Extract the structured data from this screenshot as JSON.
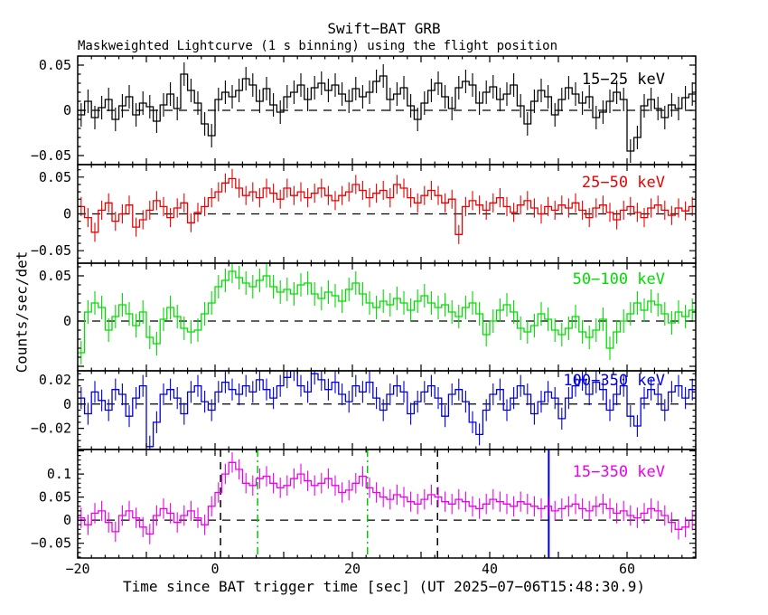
{
  "figure": {
    "title": "Swift−BAT GRB",
    "subtitle": "Maskweighted Lightcurve (1 s binning) using the flight position",
    "xlabel": "Time since BAT trigger time [sec] (UT 2025−07−06T15:48:30.9)",
    "ylabel": "Counts/sec/det",
    "trigger_time_ut": "2025-07-06T15:48:30.9",
    "binning": "1 s"
  },
  "chart_data": {
    "type": "line",
    "subtype": "step-histogram-with-errorbars",
    "x_start": -20,
    "bin_width_sec": 1,
    "xlim": [
      -20,
      70
    ],
    "x_major_tick_step": 10,
    "x_minor_tick_step": 2,
    "x_labeled_ticks": [
      -20,
      0,
      20,
      40,
      60
    ],
    "x_labeled_tick_labels": [
      "−20",
      "0",
      "20",
      "40",
      "60"
    ],
    "zero_line": {
      "style": "dashed",
      "color": "#000000"
    },
    "panels": [
      {
        "label": "15−25 keV",
        "color": "#000000",
        "ylim": [
          -0.06,
          0.06
        ],
        "yticks_labeled": [
          0.05,
          0,
          -0.05
        ],
        "y_major_step": 0.05,
        "y_minor_step": 0.01,
        "err": 0.013,
        "values": [
          -0.005,
          0.01,
          -0.008,
          0.003,
          0.012,
          -0.01,
          0.005,
          0.015,
          -0.005,
          0.008,
          0.004,
          -0.012,
          0.006,
          0.018,
          0.002,
          0.04,
          0.022,
          0.008,
          -0.015,
          -0.028,
          0.012,
          0.02,
          0.015,
          0.022,
          0.035,
          0.028,
          0.01,
          0.024,
          0.006,
          -0.002,
          0.015,
          0.02,
          0.028,
          0.012,
          0.025,
          0.03,
          0.022,
          0.028,
          0.018,
          0.01,
          0.024,
          0.015,
          0.02,
          0.032,
          0.038,
          0.012,
          0.018,
          0.025,
          0.005,
          -0.01,
          0.008,
          0.022,
          0.03,
          0.015,
          0.002,
          0.025,
          0.032,
          0.028,
          0.008,
          0.02,
          0.026,
          0.012,
          0.018,
          0.028,
          0.005,
          -0.015,
          0.01,
          0.022,
          0.015,
          -0.005,
          0.012,
          0.025,
          0.018,
          0.008,
          0.015,
          -0.008,
          -0.002,
          0.01,
          0.02,
          0.012,
          -0.045,
          -0.03,
          0.005,
          0.012,
          0.002,
          -0.008,
          0.006,
          0.002,
          0.014,
          0.018
        ]
      },
      {
        "label": "25−50 keV",
        "color": "#ee0000",
        "ylim": [
          -0.067,
          0.067
        ],
        "yticks_labeled": [
          0.05,
          0,
          -0.05
        ],
        "y_major_step": 0.05,
        "y_minor_step": 0.01,
        "err": 0.013,
        "values": [
          0.01,
          -0.005,
          -0.025,
          0.005,
          0.015,
          -0.01,
          0.0,
          0.012,
          -0.018,
          -0.008,
          0.005,
          0.018,
          0.01,
          -0.005,
          0.008,
          0.015,
          -0.012,
          0.002,
          0.01,
          0.022,
          0.03,
          0.042,
          0.048,
          0.035,
          0.025,
          0.03,
          0.022,
          0.035,
          0.028,
          0.02,
          0.035,
          0.025,
          0.03,
          0.022,
          0.028,
          0.035,
          0.025,
          0.018,
          0.025,
          0.03,
          0.04,
          0.032,
          0.022,
          0.028,
          0.032,
          0.022,
          0.04,
          0.035,
          0.022,
          0.015,
          0.025,
          0.032,
          0.025,
          0.015,
          0.02,
          -0.028,
          0.01,
          0.018,
          0.012,
          0.005,
          0.015,
          0.022,
          0.01,
          0.002,
          0.012,
          0.018,
          0.008,
          0.0,
          0.01,
          0.005,
          0.012,
          0.008,
          0.015,
          0.005,
          -0.005,
          0.008,
          0.012,
          0.002,
          -0.008,
          0.005,
          0.01,
          0.002,
          -0.005,
          0.008,
          0.012,
          0.005,
          -0.002,
          0.008,
          0.004,
          0.01
        ]
      },
      {
        "label": "50−100 keV",
        "color": "#00dd00",
        "ylim": [
          -0.055,
          0.064
        ],
        "yticks_labeled": [
          0.05,
          0
        ],
        "y_major_step": 0.05,
        "y_minor_step": 0.01,
        "err": 0.013,
        "values": [
          -0.035,
          0.01,
          0.02,
          0.015,
          -0.01,
          0.005,
          0.018,
          0.008,
          -0.005,
          0.01,
          -0.018,
          -0.025,
          0.002,
          0.015,
          0.005,
          -0.008,
          -0.012,
          -0.01,
          0.008,
          0.02,
          0.038,
          0.045,
          0.055,
          0.048,
          0.042,
          0.038,
          0.045,
          0.05,
          0.038,
          0.032,
          0.035,
          0.03,
          0.04,
          0.042,
          0.03,
          0.025,
          0.032,
          0.028,
          0.022,
          0.035,
          0.042,
          0.03,
          0.02,
          0.015,
          0.022,
          0.018,
          0.025,
          0.02,
          0.012,
          0.022,
          0.028,
          0.02,
          0.015,
          0.018,
          0.01,
          0.005,
          0.015,
          0.02,
          0.008,
          -0.015,
          0.0,
          0.012,
          0.018,
          0.01,
          -0.008,
          -0.012,
          -0.005,
          0.008,
          0.002,
          -0.01,
          -0.015,
          -0.008,
          0.005,
          -0.012,
          -0.018,
          -0.01,
          0.002,
          -0.03,
          -0.012,
          0.0,
          0.008,
          0.02,
          0.012,
          0.022,
          0.018,
          0.008,
          -0.002,
          0.01,
          0.005,
          0.012
        ]
      },
      {
        "label": "100−350 keV",
        "color": "#0000dd",
        "ylim": [
          -0.0374,
          0.0274
        ],
        "yticks_labeled": [
          0.02,
          0,
          -0.02
        ],
        "y_major_step": 0.02,
        "y_minor_step": 0.005,
        "err": 0.009,
        "values": [
          0.005,
          -0.008,
          0.01,
          0.003,
          -0.005,
          0.012,
          0.008,
          -0.01,
          0.005,
          0.015,
          -0.035,
          -0.015,
          0.008,
          0.012,
          0.005,
          -0.008,
          0.01,
          0.015,
          0.002,
          -0.005,
          0.01,
          0.018,
          0.012,
          0.008,
          0.015,
          0.01,
          0.02,
          0.012,
          0.005,
          0.015,
          0.022,
          0.028,
          0.015,
          0.01,
          0.025,
          0.02,
          0.012,
          0.018,
          0.008,
          0.002,
          0.015,
          0.01,
          0.018,
          0.005,
          -0.005,
          0.008,
          0.015,
          0.01,
          -0.008,
          0.002,
          0.01,
          0.015,
          0.005,
          -0.01,
          0.008,
          0.012,
          0.002,
          -0.015,
          -0.025,
          -0.005,
          0.008,
          0.012,
          -0.005,
          0.005,
          0.015,
          0.008,
          -0.008,
          0.002,
          0.01,
          0.005,
          -0.012,
          0.005,
          0.015,
          0.02,
          0.008,
          0.018,
          0.012,
          -0.005,
          0.008,
          0.015,
          -0.01,
          -0.018,
          0.005,
          0.012,
          0.008,
          -0.005,
          0.01,
          0.015,
          0.005,
          0.012
        ]
      },
      {
        "label": "15−350 keV",
        "color": "#ee00ee",
        "ylim": [
          -0.082,
          0.153
        ],
        "yticks_labeled": [
          0.1,
          0.05,
          0,
          -0.05
        ],
        "y_major_step": 0.05,
        "y_minor_step": 0.01,
        "err": 0.022,
        "values": [
          0.005,
          -0.01,
          0.015,
          0.02,
          -0.005,
          -0.025,
          0.01,
          0.02,
          0.005,
          -0.015,
          -0.03,
          0.01,
          0.025,
          0.015,
          -0.005,
          0.01,
          0.02,
          0.005,
          -0.01,
          0.03,
          0.06,
          0.1,
          0.125,
          0.11,
          0.08,
          0.075,
          0.09,
          0.095,
          0.08,
          0.07,
          0.075,
          0.09,
          0.1,
          0.085,
          0.075,
          0.08,
          0.09,
          0.075,
          0.06,
          0.065,
          0.08,
          0.095,
          0.07,
          0.06,
          0.05,
          0.045,
          0.055,
          0.05,
          0.04,
          0.035,
          0.045,
          0.055,
          0.05,
          0.04,
          0.035,
          0.045,
          0.04,
          0.03,
          0.025,
          0.035,
          0.045,
          0.04,
          0.035,
          0.03,
          0.04,
          0.035,
          0.03,
          0.025,
          0.03,
          0.02,
          0.025,
          0.03,
          0.035,
          0.025,
          0.02,
          0.03,
          0.035,
          0.025,
          0.015,
          0.02,
          0.01,
          0.005,
          0.015,
          0.025,
          0.02,
          0.01,
          -0.005,
          -0.02,
          -0.015,
          0.0
        ]
      }
    ],
    "event_markers": {
      "panel_label": "15−350 keV",
      "lines": [
        {
          "t": 0.8,
          "style": "dashed",
          "color": "#000000"
        },
        {
          "t": 6.2,
          "style": "dashdot",
          "color": "#00cc00"
        },
        {
          "t": 22.2,
          "style": "dashdot",
          "color": "#00cc00"
        },
        {
          "t": 32.4,
          "style": "dashed",
          "color": "#000000"
        },
        {
          "t": 48.6,
          "style": "solid",
          "color": "#0000bb"
        }
      ]
    }
  }
}
